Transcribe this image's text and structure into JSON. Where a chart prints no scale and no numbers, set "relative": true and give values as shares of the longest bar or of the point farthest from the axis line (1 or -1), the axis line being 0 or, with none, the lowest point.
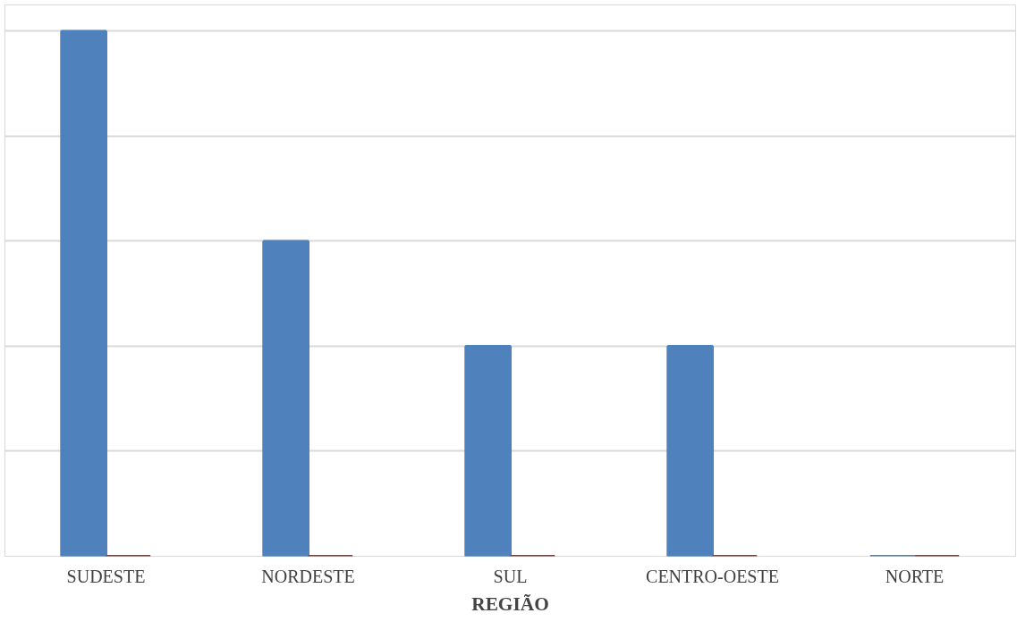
{
  "chart_data": {
    "type": "bar",
    "relative": true,
    "xlabel": "REGIÃO",
    "categories": [
      "SUDESTE",
      "NORDESTE",
      "SUL",
      "CENTRO-OESTE",
      "NORTE"
    ],
    "series": [
      {
        "color": "#4f81bd",
        "values": [
          1,
          0.6,
          0.4,
          0.4,
          0
        ]
      },
      {
        "color": "#953735",
        "values": [
          0,
          0,
          0,
          0,
          0
        ]
      }
    ],
    "grid": "y"
  }
}
